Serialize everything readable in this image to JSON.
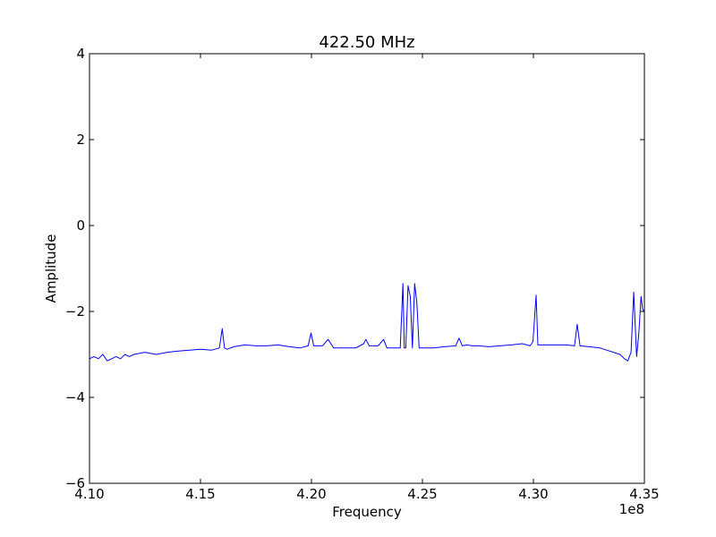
{
  "chart_data": {
    "type": "line",
    "title": "422.50 MHz",
    "xlabel": "Frequency",
    "ylabel": "Amplitude",
    "x_offset_label": "1e8",
    "xlim": [
      4.1,
      4.35
    ],
    "ylim": [
      -6,
      4
    ],
    "x_ticks": [
      4.1,
      4.15,
      4.2,
      4.25,
      4.3,
      4.35
    ],
    "x_tick_labels": [
      "4.10",
      "4.15",
      "4.20",
      "4.25",
      "4.30",
      "4.35"
    ],
    "y_ticks": [
      4,
      2,
      0,
      -2,
      -4,
      -6
    ],
    "y_tick_labels": [
      "4",
      "2",
      "0",
      "−2",
      "−4",
      "−6"
    ],
    "grid": false,
    "series": [
      {
        "color": "#0000ff",
        "x": [
          4.1,
          4.102,
          4.104,
          4.106,
          4.108,
          4.11,
          4.112,
          4.114,
          4.116,
          4.118,
          4.12,
          4.125,
          4.13,
          4.135,
          4.14,
          4.145,
          4.15,
          4.155,
          4.1585,
          4.1598,
          4.1608,
          4.162,
          4.165,
          4.17,
          4.175,
          4.18,
          4.185,
          4.19,
          4.195,
          4.1985,
          4.1998,
          4.201,
          4.205,
          4.2075,
          4.21,
          4.215,
          4.22,
          4.2235,
          4.2245,
          4.226,
          4.23,
          4.2325,
          4.234,
          4.236,
          4.238,
          4.24,
          4.2412,
          4.2418,
          4.2425,
          4.2435,
          4.2445,
          4.2455,
          4.2465,
          4.2475,
          4.2485,
          4.25,
          4.255,
          4.26,
          4.265,
          4.2665,
          4.268,
          4.27,
          4.2725,
          4.275,
          4.28,
          4.285,
          4.29,
          4.295,
          4.2985,
          4.2998,
          4.3012,
          4.302,
          4.305,
          4.31,
          4.315,
          4.3185,
          4.3197,
          4.321,
          4.325,
          4.33,
          4.333,
          4.336,
          4.339,
          4.341,
          4.3425,
          4.344,
          4.3452,
          4.3465,
          4.3475,
          4.3485,
          4.3492,
          4.35
        ],
        "y": [
          -3.1,
          -3.05,
          -3.1,
          -3.0,
          -3.15,
          -3.1,
          -3.05,
          -3.1,
          -3.0,
          -3.05,
          -3.0,
          -2.95,
          -3.0,
          -2.95,
          -2.92,
          -2.9,
          -2.88,
          -2.9,
          -2.85,
          -2.4,
          -2.85,
          -2.88,
          -2.82,
          -2.78,
          -2.8,
          -2.8,
          -2.78,
          -2.82,
          -2.85,
          -2.8,
          -2.5,
          -2.8,
          -2.8,
          -2.65,
          -2.85,
          -2.85,
          -2.85,
          -2.75,
          -2.65,
          -2.8,
          -2.8,
          -2.65,
          -2.85,
          -2.85,
          -2.85,
          -2.85,
          -1.35,
          -2.85,
          -2.85,
          -1.4,
          -1.65,
          -2.85,
          -1.35,
          -1.8,
          -2.85,
          -2.85,
          -2.85,
          -2.82,
          -2.8,
          -2.62,
          -2.8,
          -2.78,
          -2.8,
          -2.8,
          -2.82,
          -2.8,
          -2.78,
          -2.75,
          -2.8,
          -2.7,
          -1.62,
          -2.78,
          -2.78,
          -2.78,
          -2.78,
          -2.8,
          -2.3,
          -2.8,
          -2.82,
          -2.85,
          -2.9,
          -2.95,
          -3.0,
          -3.1,
          -3.15,
          -2.95,
          -1.55,
          -3.05,
          -2.5,
          -1.65,
          -1.95,
          -2.0
        ]
      }
    ]
  }
}
